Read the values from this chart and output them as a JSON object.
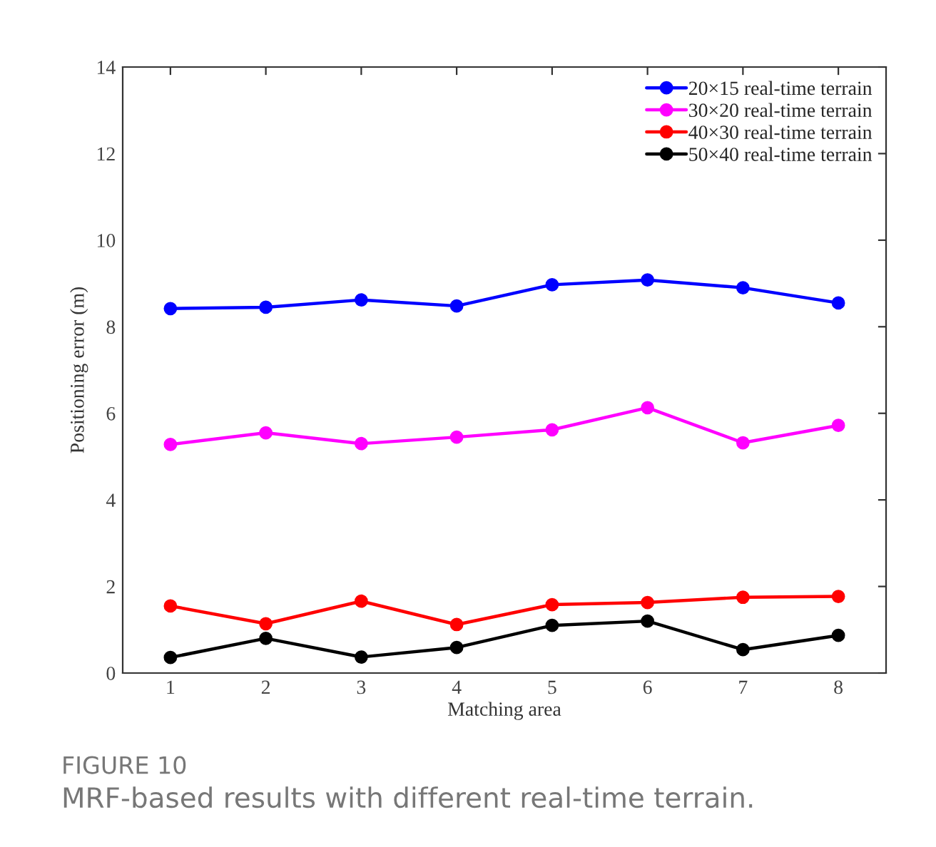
{
  "chart_data": {
    "type": "line",
    "title": "FIGURE 10",
    "subtitle": "MRF-based results with different real-time terrain.",
    "xlabel": "Matching area",
    "ylabel": "Positioning error (m)",
    "x": [
      1,
      2,
      3,
      4,
      5,
      6,
      7,
      8
    ],
    "series": [
      {
        "name": "20×15 real-time terrain",
        "color": "#0000ff",
        "values": [
          8.42,
          8.45,
          8.62,
          8.48,
          8.97,
          9.08,
          8.9,
          8.55
        ]
      },
      {
        "name": "30×20 real-time terrain",
        "color": "#ff00ff",
        "values": [
          5.28,
          5.55,
          5.3,
          5.45,
          5.62,
          6.13,
          5.32,
          5.72
        ]
      },
      {
        "name": "40×30 real-time terrain",
        "color": "#ff0000",
        "values": [
          1.55,
          1.14,
          1.66,
          1.12,
          1.58,
          1.63,
          1.75,
          1.77
        ]
      },
      {
        "name": "50×40 real-time terrain",
        "color": "#000000",
        "values": [
          0.36,
          0.8,
          0.37,
          0.59,
          1.1,
          1.2,
          0.54,
          0.87
        ]
      }
    ],
    "xlim": [
      0.5,
      8.5
    ],
    "xticks": [
      1,
      2,
      3,
      4,
      5,
      6,
      7,
      8
    ],
    "ylim": [
      0,
      14
    ],
    "yticks": [
      0,
      2,
      4,
      6,
      8,
      10,
      12,
      14
    ],
    "grid": false,
    "legend": "top right",
    "marker": "circle",
    "line_style": "solid"
  }
}
